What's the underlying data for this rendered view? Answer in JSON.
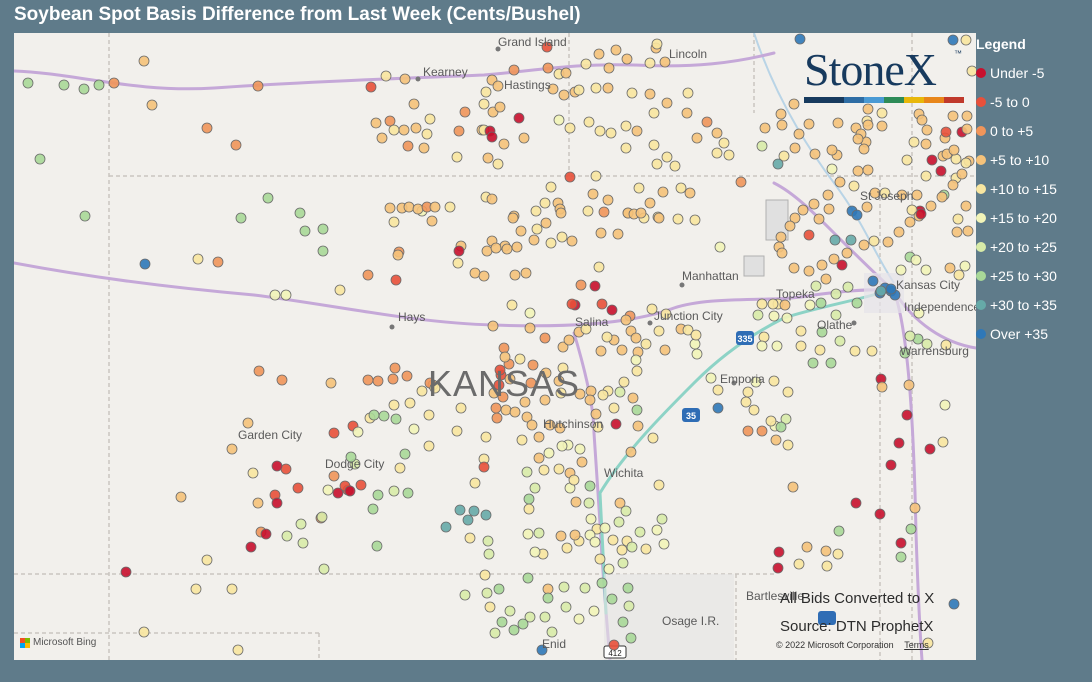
{
  "title": "Soybean Spot Basis Difference from Last Week (Cents/Bushel)",
  "logo": {
    "text": "StoneX",
    "tm": "™",
    "stripe_colors": [
      "#173a5e",
      "#173a5e",
      "#2e6da4",
      "#4a9ad4",
      "#2e8b57",
      "#e8b70a",
      "#e8861a",
      "#c0392b"
    ]
  },
  "state_label": "KANSAS",
  "cities": [
    {
      "name": "Grand Island"
    },
    {
      "name": "Lincoln"
    },
    {
      "name": "Kearney"
    },
    {
      "name": "Hastings"
    },
    {
      "name": "St Joseph"
    },
    {
      "name": "Manhattan"
    },
    {
      "name": "Kansas City"
    },
    {
      "name": "Independence"
    },
    {
      "name": "Topeka"
    },
    {
      "name": "Hays"
    },
    {
      "name": "Salina"
    },
    {
      "name": "Junction City"
    },
    {
      "name": "Olathe"
    },
    {
      "name": "Warrensburg"
    },
    {
      "name": "Emporia"
    },
    {
      "name": "Garden City"
    },
    {
      "name": "Dodge City"
    },
    {
      "name": "Hutchinson"
    },
    {
      "name": "Wichita"
    },
    {
      "name": "Bartlesville"
    },
    {
      "name": "Osage I.R."
    },
    {
      "name": "Enid"
    }
  ],
  "highway_shields": [
    "335",
    "35",
    "412"
  ],
  "source": {
    "line1": "All Bids Converted to X",
    "line2": "Source: DTN ProphetX"
  },
  "attribution": {
    "bing": "Microsoft Bing",
    "copyright": "© 2022 Microsoft Corporation",
    "terms": "Terms"
  },
  "legend": {
    "title": "Legend",
    "items": [
      {
        "label": "Under -5",
        "color": "#c8102e"
      },
      {
        "label": "-5 to 0",
        "color": "#e8503a"
      },
      {
        "label": "0 to +5",
        "color": "#f0955a"
      },
      {
        "label": "+5 to +10",
        "color": "#f5c27a"
      },
      {
        "label": "+10 to +15",
        "color": "#f8e6a0"
      },
      {
        "label": "+15 to +20",
        "color": "#f2f4b8"
      },
      {
        "label": "+20 to +25",
        "color": "#d8eba8"
      },
      {
        "label": "+25 to +30",
        "color": "#a8d898"
      },
      {
        "label": "+30 to +35",
        "color": "#66aaa8"
      },
      {
        "label": "Over +35",
        "color": "#2f78b8"
      }
    ]
  }
}
